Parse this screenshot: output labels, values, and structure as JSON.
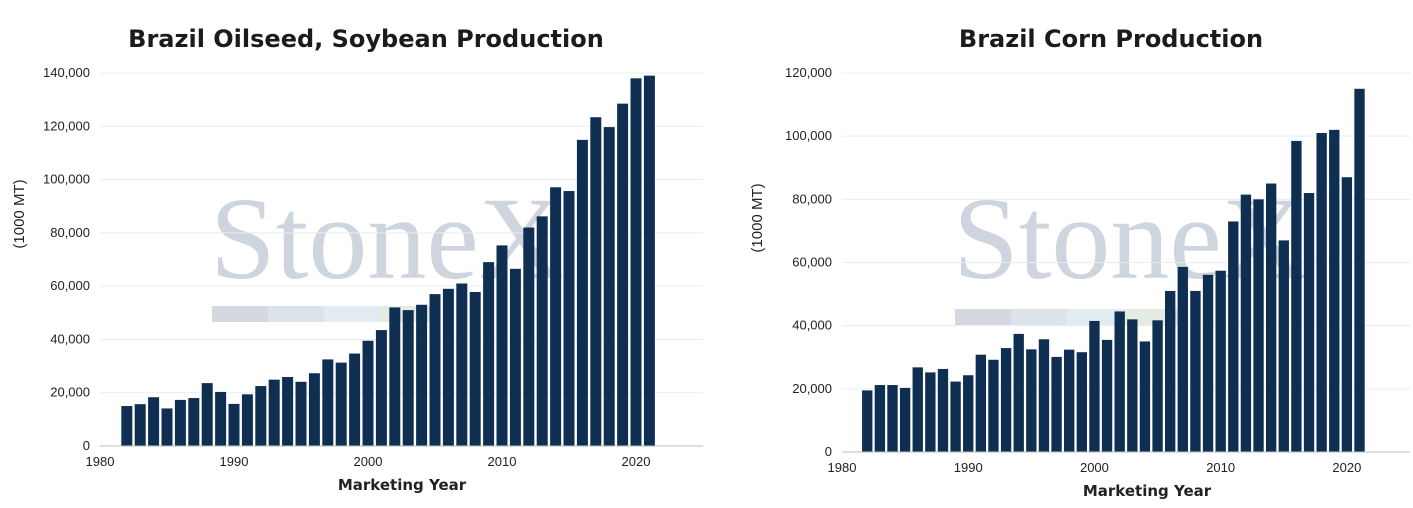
{
  "watermark": {
    "text": "StoneX",
    "color": "#c7ced8"
  },
  "colors": {
    "bar": "#0e2f52",
    "grid": "#ececec"
  },
  "chart_data": [
    {
      "type": "bar",
      "title": "Brazil Oilseed, Soybean Production",
      "xlabel": "Marketing Year",
      "ylabel": "(1000 MT)",
      "x": [
        1982,
        1983,
        1984,
        1985,
        1986,
        1987,
        1988,
        1989,
        1990,
        1991,
        1992,
        1993,
        1994,
        1995,
        1996,
        1997,
        1998,
        1999,
        2000,
        2001,
        2002,
        2003,
        2004,
        2005,
        2006,
        2007,
        2008,
        2009,
        2010,
        2011,
        2012,
        2013,
        2014,
        2015,
        2016,
        2017,
        2018,
        2019,
        2020,
        2021
      ],
      "values": [
        15000,
        15700,
        18300,
        14100,
        17300,
        18000,
        23600,
        20300,
        15800,
        19400,
        22500,
        24900,
        25900,
        24100,
        27300,
        32500,
        31300,
        34700,
        39500,
        43500,
        52000,
        51000,
        53000,
        57000,
        59000,
        61000,
        57800,
        69000,
        75300,
        66500,
        82000,
        86200,
        97100,
        95700,
        114900,
        123400,
        119700,
        128500,
        138000,
        139000
      ],
      "xlim": [
        1980,
        2025
      ],
      "ylim": [
        0,
        140000
      ],
      "xticks": [
        1980,
        1990,
        2000,
        2010,
        2020
      ],
      "xtick_labels": [
        "1980",
        "1990",
        "2000",
        "2010",
        "2020"
      ],
      "yticks": [
        0,
        20000,
        40000,
        60000,
        80000,
        100000,
        120000,
        140000
      ],
      "ytick_labels": [
        "0",
        "20,000",
        "40,000",
        "60,000",
        "80,000",
        "100,000",
        "120,000",
        "140,000"
      ],
      "grid": true
    },
    {
      "type": "bar",
      "title": "Brazil Corn Production",
      "xlabel": "Marketing Year",
      "ylabel": "(1000 MT)",
      "x": [
        1982,
        1983,
        1984,
        1985,
        1986,
        1987,
        1988,
        1989,
        1990,
        1991,
        1992,
        1993,
        1994,
        1995,
        1996,
        1997,
        1998,
        1999,
        2000,
        2001,
        2002,
        2003,
        2004,
        2005,
        2006,
        2007,
        2008,
        2009,
        2010,
        2011,
        2012,
        2013,
        2014,
        2015,
        2016,
        2017,
        2018,
        2019,
        2020,
        2021
      ],
      "values": [
        19500,
        21200,
        21200,
        20300,
        26800,
        25200,
        26300,
        22300,
        24300,
        30800,
        29200,
        32900,
        37400,
        32500,
        35700,
        30100,
        32400,
        31600,
        41500,
        35500,
        44500,
        42000,
        35000,
        41700,
        51000,
        58600,
        51000,
        56100,
        57400,
        73000,
        81500,
        80000,
        85000,
        67000,
        98500,
        82000,
        101000,
        102000,
        87000,
        115000
      ],
      "xlim": [
        1980,
        2025
      ],
      "ylim": [
        0,
        120000
      ],
      "xticks": [
        1980,
        1990,
        2000,
        2010,
        2020
      ],
      "xtick_labels": [
        "1980",
        "1990",
        "2000",
        "2010",
        "2020"
      ],
      "yticks": [
        0,
        20000,
        40000,
        60000,
        80000,
        100000,
        120000
      ],
      "ytick_labels": [
        "0",
        "20,000",
        "40,000",
        "60,000",
        "80,000",
        "100,000",
        "120,000"
      ],
      "grid": true
    }
  ]
}
